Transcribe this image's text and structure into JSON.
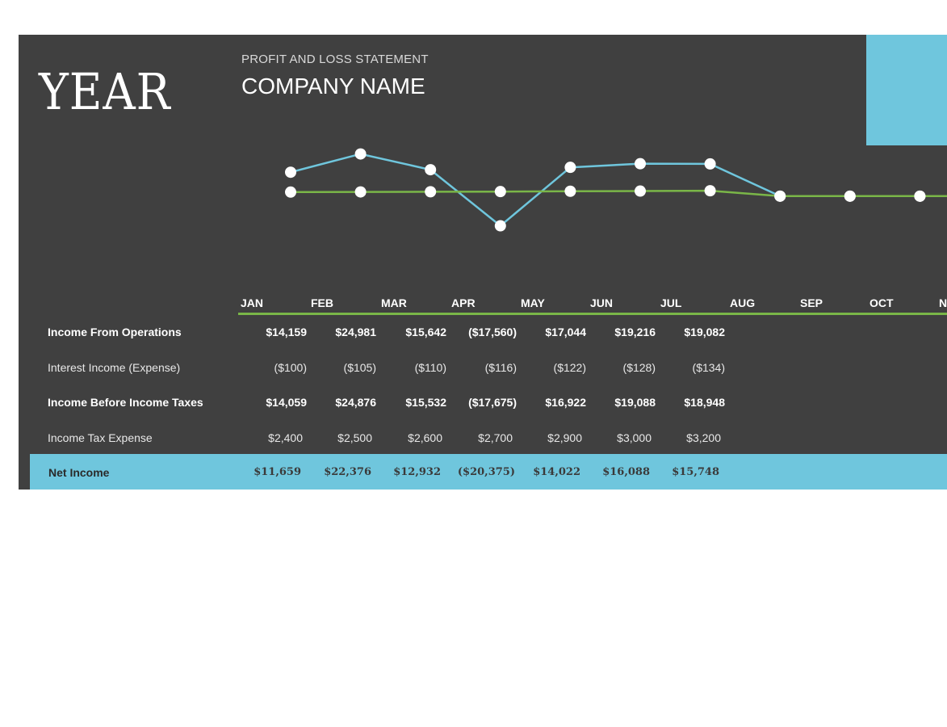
{
  "header": {
    "year": "YEAR",
    "subtitle": "PROFIT AND LOSS STATEMENT",
    "company": "COMPANY NAME"
  },
  "months": [
    "JAN",
    "FEB",
    "MAR",
    "APR",
    "MAY",
    "JUN",
    "JUL",
    "AUG",
    "SEP",
    "OCT",
    "N"
  ],
  "rows": {
    "operations": {
      "label": "Income From Operations",
      "values": [
        "$14,159",
        "$24,981",
        "$15,642",
        "($17,560)",
        "$17,044",
        "$19,216",
        "$19,082"
      ]
    },
    "interest": {
      "label": "Interest Income (Expense)",
      "values": [
        "($100)",
        "($105)",
        "($110)",
        "($116)",
        "($122)",
        "($128)",
        "($134)"
      ]
    },
    "before_taxes": {
      "label": "Income Before Income Taxes",
      "values": [
        "$14,059",
        "$24,876",
        "$15,532",
        "($17,675)",
        "$16,922",
        "$19,088",
        "$18,948"
      ]
    },
    "tax": {
      "label": "Income Tax Expense",
      "values": [
        "$2,400",
        "$2,500",
        "$2,600",
        "$2,700",
        "$2,900",
        "$3,000",
        "$3,200"
      ]
    },
    "net": {
      "label": "Net Income",
      "values": [
        "$11,659",
        "$22,376",
        "$12,932",
        "($20,375)",
        "$14,022",
        "$16,088",
        "$15,748"
      ]
    }
  },
  "chart_data": {
    "type": "line",
    "categories": [
      "JAN",
      "FEB",
      "MAR",
      "APR",
      "MAY",
      "JUN",
      "JUL",
      "AUG",
      "SEP",
      "OCT",
      "NOV"
    ],
    "series": [
      {
        "values": [
          14159,
          24981,
          15642,
          -17560,
          17044,
          19216,
          19082,
          0,
          0,
          0,
          0
        ],
        "color": "#6fc6dd"
      },
      {
        "values": [
          2400,
          2500,
          2600,
          2700,
          2900,
          3000,
          3200,
          0,
          0,
          0,
          0
        ],
        "color": "#7ab648"
      }
    ],
    "ylim": [
      -24000,
      31000
    ],
    "grid": false,
    "axes_visible": false
  },
  "colors": {
    "background": "#404040",
    "accent_blue": "#6fc6dd",
    "accent_green": "#7ab648"
  }
}
